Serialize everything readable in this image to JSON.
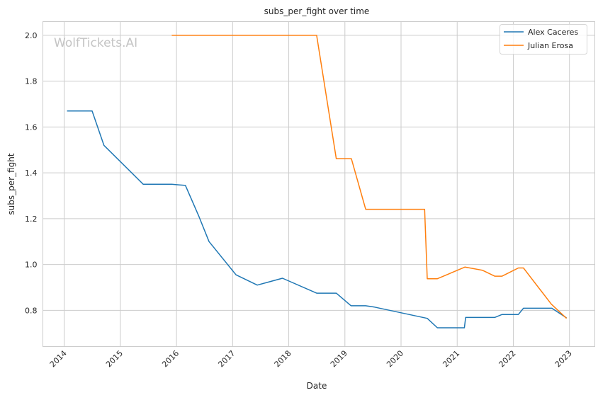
{
  "chart_data": {
    "type": "line",
    "title": "subs_per_fight over time",
    "xlabel": "Date",
    "ylabel": "subs_per_fight",
    "watermark": "WolfTickets.AI",
    "grid": true,
    "legend_placement": "top-right",
    "xlim": [
      "2013-08-15",
      "2023-06-15"
    ],
    "ylim": [
      0.642,
      2.06
    ],
    "x_ticks": [
      "2014",
      "2015",
      "2016",
      "2017",
      "2018",
      "2019",
      "2020",
      "2021",
      "2022",
      "2023"
    ],
    "y_ticks": [
      "0.8",
      "1.0",
      "1.2",
      "1.4",
      "1.6",
      "1.8",
      "2.0"
    ],
    "series": [
      {
        "name": "Alex Caceres",
        "color": "#1f77b4",
        "x": [
          "2014-01-19",
          "2014-07-01",
          "2014-09-16",
          "2015-05-30",
          "2015-12-01",
          "2016-02-28",
          "2016-05-26",
          "2016-07-31",
          "2017-01-23",
          "2017-06-10",
          "2017-11-21",
          "2018-07-01",
          "2018-11-06",
          "2019-02-10",
          "2019-05-16",
          "2019-07-13",
          "2020-06-20",
          "2020-08-25",
          "2021-02-17",
          "2021-02-25",
          "2021-09-02",
          "2021-10-20",
          "2022-02-03",
          "2022-03-08",
          "2022-09-09",
          "2022-12-13"
        ],
        "y": [
          1.67,
          1.67,
          1.52,
          1.35,
          1.35,
          1.345,
          1.21,
          1.1,
          0.955,
          0.91,
          0.94,
          0.875,
          0.875,
          0.82,
          0.82,
          0.814,
          0.765,
          0.724,
          0.724,
          0.769,
          0.769,
          0.782,
          0.782,
          0.809,
          0.809,
          0.767
        ]
      },
      {
        "name": "Julian Erosa",
        "color": "#ff7f0e",
        "x": [
          "2015-12-01",
          "2018-07-01",
          "2018-11-06",
          "2019-02-12",
          "2019-05-16",
          "2020-06-03",
          "2020-06-20",
          "2020-08-25",
          "2021-02-21",
          "2021-06-14",
          "2021-09-02",
          "2021-10-20",
          "2022-02-03",
          "2022-03-08",
          "2022-09-05",
          "2022-12-13"
        ],
        "y": [
          2.0,
          2.0,
          1.462,
          1.462,
          1.241,
          1.241,
          0.938,
          0.938,
          0.989,
          0.975,
          0.949,
          0.949,
          0.985,
          0.985,
          0.827,
          0.765
        ]
      }
    ]
  }
}
